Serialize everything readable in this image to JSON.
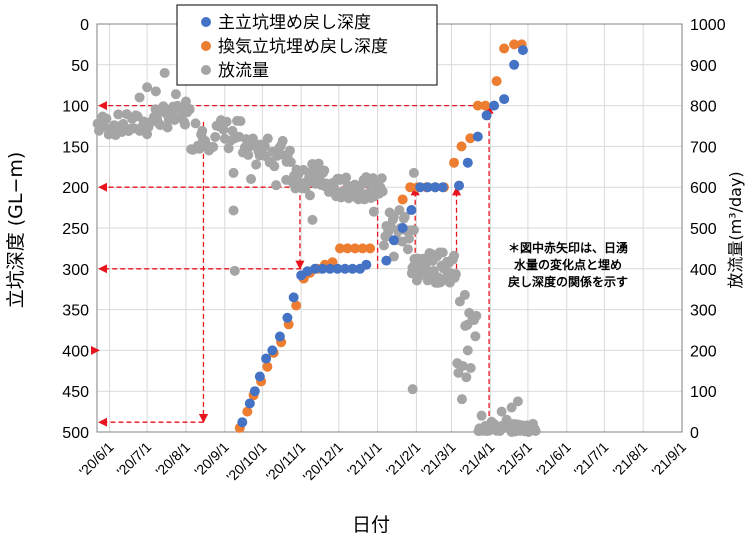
{
  "chart_data": {
    "type": "scatter",
    "xlabel": "日付",
    "ylabel_left": "立坑深度 (GL−m)",
    "ylabel_right": "放流量(m³/day)",
    "x_ticks": [
      "'20/6/1",
      "'20/7/1",
      "'20/8/1",
      "'20/9/1",
      "'20/10/1",
      "'20/11/1",
      "'20/12/1",
      "'21/1/1",
      "'21/2/1",
      "'21/3/1",
      "'21/4/1",
      "'21/5/1",
      "'21/6/1",
      "'21/7/1",
      "'21/8/1",
      "'21/9/1"
    ],
    "y_left_ticks": [
      "0",
      "50",
      "100",
      "150",
      "200",
      "250",
      "300",
      "350",
      "400",
      "450",
      "500"
    ],
    "y_right_ticks": [
      "1000",
      "900",
      "800",
      "700",
      "600",
      "500",
      "400",
      "300",
      "200",
      "100",
      "0"
    ],
    "y_left_range": [
      0,
      500
    ],
    "y_left_reversed": true,
    "y_right_range": [
      0,
      1000
    ],
    "x_range": [
      "2020-05-22",
      "2021-09-01"
    ],
    "grid": true,
    "legend_position": "top-center",
    "note": [
      "＊図中赤矢印は、日湧",
      "水量の変化点と埋め",
      "戻し深度の関係を示す"
    ],
    "series": [
      {
        "name": "主立坑埋め戻し深度",
        "color": "#4472c4",
        "axis": "left",
        "points": [
          [
            "2020-09-15",
            488
          ],
          [
            "2020-09-21",
            465
          ],
          [
            "2020-09-25",
            450
          ],
          [
            "2020-09-29",
            432
          ],
          [
            "2020-10-04",
            410
          ],
          [
            "2020-10-09",
            400
          ],
          [
            "2020-10-15",
            383
          ],
          [
            "2020-10-21",
            360
          ],
          [
            "2020-10-26",
            335
          ],
          [
            "2020-11-01",
            308
          ],
          [
            "2020-11-06",
            303
          ],
          [
            "2020-11-12",
            300
          ],
          [
            "2020-11-18",
            300
          ],
          [
            "2020-11-24",
            300
          ],
          [
            "2020-11-30",
            300
          ],
          [
            "2020-12-06",
            300
          ],
          [
            "2020-12-12",
            300
          ],
          [
            "2020-12-18",
            300
          ],
          [
            "2020-12-23",
            295
          ],
          [
            "2021-01-08",
            290
          ],
          [
            "2021-01-14",
            265
          ],
          [
            "2021-01-21",
            250
          ],
          [
            "2021-01-28",
            228
          ],
          [
            "2021-02-04",
            200
          ],
          [
            "2021-02-10",
            200
          ],
          [
            "2021-02-16",
            200
          ],
          [
            "2021-02-22",
            200
          ],
          [
            "2021-03-07",
            198
          ],
          [
            "2021-03-14",
            170
          ],
          [
            "2021-03-22",
            138
          ],
          [
            "2021-03-29",
            112
          ],
          [
            "2021-04-04",
            100
          ],
          [
            "2021-04-12",
            92
          ],
          [
            "2021-04-20",
            50
          ],
          [
            "2021-04-27",
            32
          ]
        ]
      },
      {
        "name": "換気立坑埋め戻し深度",
        "color": "#ed7d31",
        "axis": "left",
        "points": [
          [
            "2020-09-13",
            495
          ],
          [
            "2020-09-19",
            475
          ],
          [
            "2020-09-24",
            455
          ],
          [
            "2020-09-30",
            438
          ],
          [
            "2020-10-05",
            420
          ],
          [
            "2020-10-10",
            403
          ],
          [
            "2020-10-16",
            390
          ],
          [
            "2020-10-22",
            368
          ],
          [
            "2020-10-28",
            345
          ],
          [
            "2020-11-03",
            312
          ],
          [
            "2020-11-08",
            305
          ],
          [
            "2020-11-14",
            300
          ],
          [
            "2020-11-20",
            295
          ],
          [
            "2020-11-26",
            292
          ],
          [
            "2020-12-02",
            275
          ],
          [
            "2020-12-08",
            275
          ],
          [
            "2020-12-14",
            275
          ],
          [
            "2020-12-20",
            275
          ],
          [
            "2020-12-26",
            275
          ],
          [
            "2021-01-21",
            215
          ],
          [
            "2021-01-27",
            200
          ],
          [
            "2021-02-02",
            200
          ],
          [
            "2021-02-09",
            200
          ],
          [
            "2021-02-16",
            200
          ],
          [
            "2021-02-23",
            200
          ],
          [
            "2021-03-03",
            170
          ],
          [
            "2021-03-09",
            150
          ],
          [
            "2021-03-16",
            140
          ],
          [
            "2021-03-22",
            100
          ],
          [
            "2021-03-28",
            100
          ],
          [
            "2021-04-06",
            70
          ],
          [
            "2021-04-12",
            30
          ],
          [
            "2021-04-20",
            25
          ],
          [
            "2021-04-26",
            25
          ]
        ]
      },
      {
        "name": "放流量",
        "color": "#a5a5a5",
        "axis": "right",
        "clusters": [
          {
            "from": "2020-05-22",
            "to": "2020-07-05",
            "count": 30,
            "vmin": 725,
            "vmax": 780
          },
          {
            "from": "2020-07-05",
            "to": "2020-08-05",
            "count": 26,
            "vmin": 745,
            "vmax": 800
          },
          {
            "from": "2020-08-05",
            "to": "2020-09-15",
            "count": 26,
            "vmin": 690,
            "vmax": 770
          },
          {
            "from": "2020-09-15",
            "to": "2020-10-25",
            "count": 30,
            "vmin": 650,
            "vmax": 720
          },
          {
            "from": "2020-10-25",
            "to": "2020-11-20",
            "count": 24,
            "vmin": 595,
            "vmax": 660
          },
          {
            "from": "2020-11-20",
            "to": "2021-01-06",
            "count": 48,
            "vmin": 570,
            "vmax": 625
          },
          {
            "from": "2021-01-06",
            "to": "2021-01-28",
            "count": 20,
            "vmin": 440,
            "vmax": 560
          },
          {
            "from": "2021-01-28",
            "to": "2021-03-05",
            "count": 45,
            "vmin": 365,
            "vmax": 440
          },
          {
            "from": "2021-03-05",
            "to": "2021-03-22",
            "count": 14,
            "vmin": 80,
            "vmax": 340
          },
          {
            "from": "2021-03-22",
            "to": "2021-05-08",
            "count": 48,
            "vmin": 0,
            "vmax": 20
          }
        ],
        "points": [
          [
            "2020-06-25",
            820
          ],
          [
            "2020-07-01",
            845
          ],
          [
            "2020-07-08",
            835
          ],
          [
            "2020-07-15",
            880
          ],
          [
            "2020-07-24",
            828
          ],
          [
            "2020-08-01",
            810
          ],
          [
            "2020-08-14",
            738
          ],
          [
            "2020-09-08",
            635
          ],
          [
            "2020-09-08",
            543
          ],
          [
            "2020-09-09",
            395
          ],
          [
            "2020-09-22",
            620
          ],
          [
            "2020-10-12",
            605
          ],
          [
            "2020-10-20",
            618
          ],
          [
            "2020-11-08",
            580
          ],
          [
            "2020-11-10",
            520
          ],
          [
            "2020-12-27",
            590
          ],
          [
            "2020-12-29",
            540
          ],
          [
            "2021-01-08",
            505
          ],
          [
            "2021-01-14",
            430
          ],
          [
            "2021-01-30",
            635
          ],
          [
            "2021-01-30",
            495
          ],
          [
            "2021-01-29",
            105
          ],
          [
            "2021-02-08",
            400
          ],
          [
            "2021-02-22",
            440
          ],
          [
            "2021-02-26",
            415
          ],
          [
            "2021-03-12",
            260
          ],
          [
            "2021-03-14",
            200
          ],
          [
            "2021-04-10",
            50
          ],
          [
            "2021-04-14",
            30
          ],
          [
            "2021-04-18",
            60
          ],
          [
            "2021-04-23",
            75
          ],
          [
            "2021-03-25",
            40
          ],
          [
            "2021-03-28",
            15
          ],
          [
            "2021-04-02",
            25
          ],
          [
            "2021-05-05",
            20
          ]
        ]
      }
    ],
    "red_arrows": [
      {
        "type": "hline",
        "date": "2021-03-31",
        "depth": 100
      },
      {
        "type": "hline",
        "date": "2021-01-01",
        "depth": 200
      },
      {
        "type": "hline",
        "date": "2020-11-01",
        "depth": 300
      },
      {
        "type": "hline",
        "date": "2020-05-22",
        "depth": 400
      },
      {
        "type": "hline",
        "date": "2020-08-15",
        "depth": 488
      },
      {
        "type": "vline",
        "date": "2020-08-15",
        "from_depth": 120,
        "to_depth": 488
      },
      {
        "type": "vline",
        "date": "2020-10-31",
        "from_depth": 200,
        "to_depth": 300
      },
      {
        "type": "vline",
        "date": "2021-01-01",
        "from_depth": 300,
        "to_depth": 200
      },
      {
        "type": "vline",
        "date": "2021-01-31",
        "from_depth": 300,
        "to_depth": 200
      },
      {
        "type": "vline",
        "date": "2021-03-05",
        "from_depth": 300,
        "to_depth": 200
      },
      {
        "type": "vline",
        "date": "2021-03-31",
        "from_depth": 500,
        "to_depth": 100
      }
    ]
  }
}
